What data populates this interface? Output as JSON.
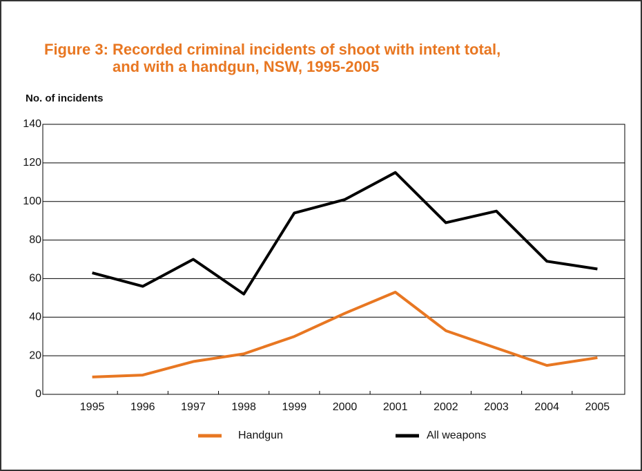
{
  "chart_data": {
    "type": "line",
    "title": [
      "Figure 3:  Recorded criminal incidents of shoot with intent total,",
      "and with a handgun, NSW, 1995-2005"
    ],
    "y_label": "No. of incidents",
    "categories": [
      "1995",
      "1996",
      "1997",
      "1998",
      "1999",
      "2000",
      "2001",
      "2002",
      "2003",
      "2004",
      "2005"
    ],
    "series": [
      {
        "name": "Handgun",
        "color": "#e87722",
        "values": [
          9,
          10,
          17,
          21,
          30,
          42,
          53,
          33,
          24,
          15,
          19
        ]
      },
      {
        "name": "All weapons",
        "color": "#000000",
        "values": [
          63,
          56,
          70,
          52,
          94,
          101,
          115,
          89,
          95,
          69,
          65
        ]
      }
    ],
    "ylim": [
      0,
      140
    ],
    "yticks": [
      0,
      20,
      40,
      60,
      80,
      100,
      120,
      140
    ],
    "grid": true,
    "legend": "bottom"
  }
}
